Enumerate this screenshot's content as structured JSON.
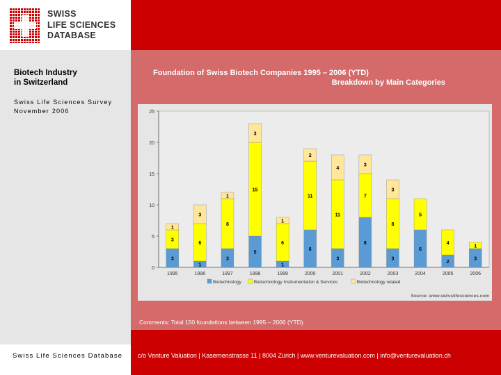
{
  "logo": {
    "name": "swiss-cross-logo",
    "lines": [
      "SWISS",
      "LIFE SCIENCES",
      "DATABASE"
    ]
  },
  "sidebar": {
    "heading_line1": "Biotech Industry",
    "heading_line2": "in Switzerland",
    "survey_line1": "Swiss Life Sciences Survey",
    "survey_line2": "November 2006"
  },
  "header": {
    "title_line1": "Foundation of Swiss Biotech Companies 1995 – 2006 (YTD)",
    "title_line2": "Breakdown by Main Categories"
  },
  "comments": "Comments: Total 150 foundations between 1995 – 2006 (YTD).",
  "footer": {
    "left": "Swiss Life Sciences Database",
    "right": "c/o Venture Valuation | Kasernenstrasse 11 | 8004 Zürich | www.venturevaluation.com | info@venturevaluation.ch"
  },
  "colors": {
    "biotechnology": "#5b9bd5",
    "instrumentation": "#ffff00",
    "related": "#ffe699"
  },
  "chart_data": {
    "type": "bar",
    "stacked": true,
    "title": "",
    "xlabel": "",
    "ylabel": "",
    "ylim": [
      0,
      25
    ],
    "yticks": [
      0,
      5,
      10,
      15,
      20,
      25
    ],
    "grid": false,
    "legend_position": "bottom",
    "source_note": "Source: www.swisslifesciences.com",
    "categories": [
      "1995",
      "1996",
      "1997",
      "1998",
      "1999",
      "2000",
      "2001",
      "2002",
      "2003",
      "2004",
      "2005",
      "2006"
    ],
    "series": [
      {
        "name": "Biotechnology",
        "values": [
          3,
          1,
          3,
          5,
          1,
          6,
          3,
          8,
          3,
          6,
          2,
          3
        ]
      },
      {
        "name": "Biotechnology Instrumentation & Services",
        "values": [
          3,
          6,
          8,
          15,
          6,
          11,
          11,
          7,
          8,
          5,
          4,
          1
        ]
      },
      {
        "name": "Biotechnology related",
        "values": [
          1,
          3,
          1,
          3,
          1,
          2,
          4,
          3,
          3,
          0,
          0,
          0
        ]
      }
    ]
  }
}
